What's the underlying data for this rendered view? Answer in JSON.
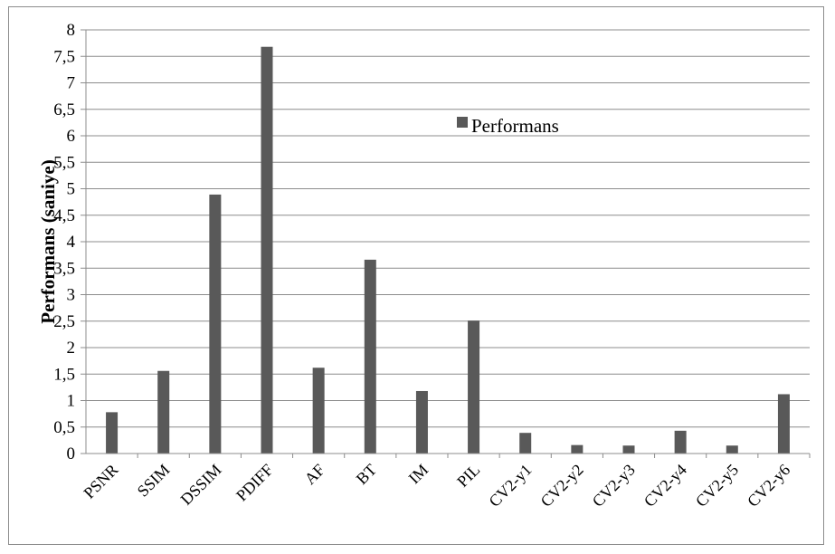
{
  "chart_data": {
    "type": "bar",
    "ylabel": "Performans (saniye)",
    "xlabel": "",
    "ylim": [
      0,
      8
    ],
    "yticks": [
      "0",
      "0,5",
      "1",
      "1,5",
      "2",
      "2,5",
      "3",
      "3,5",
      "4",
      "4,5",
      "5",
      "5,5",
      "6",
      "6,5",
      "7",
      "7,5",
      "8"
    ],
    "grid": true,
    "legend": {
      "position": "inside-top-right",
      "entries": [
        "Performans"
      ]
    },
    "categories": [
      "PSNR",
      "SSIM",
      "DSSIM",
      "PDIFF",
      "AF",
      "BT",
      "IM",
      "PIL",
      "CV2-y1",
      "CV2-y2",
      "CV2-y3",
      "CV2-y4",
      "CV2-y5",
      "CV2-y6"
    ],
    "series": [
      {
        "name": "Performans",
        "color": "#595959",
        "values": [
          0.78,
          1.56,
          4.89,
          7.68,
          1.62,
          3.66,
          1.18,
          2.51,
          0.39,
          0.16,
          0.15,
          0.43,
          0.15,
          1.12
        ]
      }
    ]
  }
}
